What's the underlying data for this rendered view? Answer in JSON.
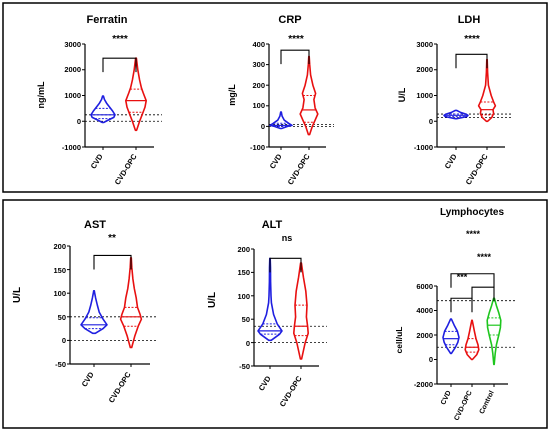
{
  "chart_data": [
    {
      "type": "violin",
      "title": "Ferratin",
      "ylabel": "ng/mL",
      "ylim": [
        -1000,
        3000
      ],
      "yticks": [
        -1000,
        0,
        1000,
        2000,
        3000
      ],
      "ytick_labels": [
        "-1000",
        "0",
        "1000",
        "2000",
        "3000"
      ],
      "categories": [
        "CVD",
        "CVD-OPC"
      ],
      "series": [
        {
          "category": "CVD",
          "color": "#1f1fe0",
          "min": -50,
          "q1": 100,
          "median": 250,
          "q3": 500,
          "max": 980,
          "profile": [
            [
              -50,
              0.05
            ],
            [
              50,
              0.45
            ],
            [
              150,
              0.9
            ],
            [
              250,
              1.0
            ],
            [
              400,
              0.8
            ],
            [
              550,
              0.55
            ],
            [
              700,
              0.3
            ],
            [
              850,
              0.12
            ],
            [
              980,
              0.03
            ]
          ]
        },
        {
          "category": "CVD-OPC",
          "color": "#e81010",
          "min": -350,
          "q1": 350,
          "median": 800,
          "q3": 1250,
          "max": 2450,
          "profile": [
            [
              -350,
              0.05
            ],
            [
              0,
              0.3
            ],
            [
              300,
              0.55
            ],
            [
              550,
              0.75
            ],
            [
              800,
              0.85
            ],
            [
              1100,
              0.6
            ],
            [
              1300,
              0.45
            ],
            [
              1600,
              0.3
            ],
            [
              2000,
              0.15
            ],
            [
              2450,
              0.03
            ]
          ]
        }
      ],
      "reference_lines": [
        0,
        250
      ],
      "comparisons": [
        {
          "from": 0,
          "to": 1,
          "label": "****",
          "value": 2450
        }
      ]
    },
    {
      "type": "violin",
      "title": "CRP",
      "ylabel": "mg/L",
      "ylim": [
        -100,
        400
      ],
      "yticks": [
        -100,
        0,
        100,
        200,
        300,
        400
      ],
      "ytick_labels": [
        "-100",
        "0",
        "100",
        "200",
        "300",
        "400"
      ],
      "categories": [
        "CVD",
        "CVD-OPC"
      ],
      "series": [
        {
          "category": "CVD",
          "color": "#1f1fe0",
          "min": -10,
          "q1": 0,
          "median": 5,
          "q3": 15,
          "max": 70,
          "profile": [
            [
              -10,
              0.05
            ],
            [
              0,
              0.6
            ],
            [
              5,
              1.0
            ],
            [
              15,
              0.7
            ],
            [
              30,
              0.3
            ],
            [
              50,
              0.1
            ],
            [
              70,
              0.03
            ]
          ]
        },
        {
          "category": "CVD-OPC",
          "color": "#e81010",
          "min": -40,
          "q1": 20,
          "median": 80,
          "q3": 150,
          "max": 340,
          "profile": [
            [
              -40,
              0.05
            ],
            [
              0,
              0.3
            ],
            [
              30,
              0.55
            ],
            [
              60,
              0.8
            ],
            [
              90,
              0.55
            ],
            [
              130,
              0.45
            ],
            [
              160,
              0.6
            ],
            [
              200,
              0.35
            ],
            [
              250,
              0.15
            ],
            [
              300,
              0.06
            ],
            [
              340,
              0.02
            ]
          ]
        }
      ],
      "reference_lines": [
        0,
        10
      ],
      "comparisons": [
        {
          "from": 0,
          "to": 1,
          "label": "****",
          "value": 370
        }
      ]
    },
    {
      "type": "violin",
      "title": "LDH",
      "ylabel": "U/L",
      "ylim": [
        -1000,
        3000
      ],
      "yticks": [
        -1000,
        0,
        1000,
        2000,
        3000
      ],
      "ytick_labels": [
        "-1000",
        "0",
        "1000",
        "2000",
        "3000"
      ],
      "categories": [
        "CVD",
        "CVD-OPC"
      ],
      "series": [
        {
          "category": "CVD",
          "color": "#1f1fe0",
          "min": 100,
          "q1": 180,
          "median": 230,
          "q3": 280,
          "max": 420,
          "profile": [
            [
              100,
              0.05
            ],
            [
              180,
              0.9
            ],
            [
              230,
              1.0
            ],
            [
              280,
              0.8
            ],
            [
              350,
              0.35
            ],
            [
              420,
              0.05
            ]
          ]
        },
        {
          "category": "CVD-OPC",
          "color": "#e81010",
          "min": 0,
          "q1": 250,
          "median": 450,
          "q3": 750,
          "max": 2400,
          "profile": [
            [
              0,
              0.05
            ],
            [
              150,
              0.4
            ],
            [
              300,
              0.55
            ],
            [
              450,
              0.5
            ],
            [
              600,
              0.7
            ],
            [
              750,
              0.55
            ],
            [
              1000,
              0.35
            ],
            [
              1400,
              0.12
            ],
            [
              1900,
              0.05
            ],
            [
              2400,
              0.02
            ]
          ]
        }
      ],
      "reference_lines": [
        140,
        280
      ],
      "comparisons": [
        {
          "from": 0,
          "to": 1,
          "label": "****",
          "value": 2600
        }
      ]
    },
    {
      "type": "violin",
      "title": "AST",
      "ylabel": "U/L",
      "ylim": [
        -50,
        200
      ],
      "yticks": [
        -50,
        0,
        50,
        100,
        150,
        200
      ],
      "ytick_labels": [
        "-50",
        "0",
        "50",
        "100",
        "150",
        "200"
      ],
      "categories": [
        "CVD",
        "CVD-OPC"
      ],
      "series": [
        {
          "category": "CVD",
          "color": "#1f1fe0",
          "min": 15,
          "q1": 25,
          "median": 33,
          "q3": 48,
          "max": 105,
          "profile": [
            [
              15,
              0.1
            ],
            [
              25,
              0.7
            ],
            [
              33,
              1.0
            ],
            [
              45,
              0.7
            ],
            [
              60,
              0.4
            ],
            [
              75,
              0.25
            ],
            [
              90,
              0.12
            ],
            [
              100,
              0.05
            ],
            [
              105,
              0.02
            ]
          ]
        },
        {
          "category": "CVD-OPC",
          "color": "#e81010",
          "min": -15,
          "q1": 30,
          "median": 50,
          "q3": 70,
          "max": 175,
          "profile": [
            [
              -15,
              0.05
            ],
            [
              10,
              0.3
            ],
            [
              30,
              0.55
            ],
            [
              45,
              0.8
            ],
            [
              55,
              0.7
            ],
            [
              70,
              0.5
            ],
            [
              90,
              0.4
            ],
            [
              110,
              0.25
            ],
            [
              130,
              0.15
            ],
            [
              155,
              0.06
            ],
            [
              175,
              0.02
            ]
          ]
        }
      ],
      "reference_lines": [
        0,
        50
      ],
      "comparisons": [
        {
          "from": 0,
          "to": 1,
          "label": "**",
          "value": 180
        }
      ]
    },
    {
      "type": "violin",
      "title": "ALT",
      "ylabel": "U/L",
      "ylim": [
        -50,
        200
      ],
      "yticks": [
        -50,
        0,
        50,
        100,
        150,
        200
      ],
      "ytick_labels": [
        "-50",
        "0",
        "50",
        "100",
        "150",
        "200"
      ],
      "categories": [
        "CVD",
        "CVD-OPC"
      ],
      "series": [
        {
          "category": "CVD",
          "color": "#1f1fe0",
          "min": 5,
          "q1": 18,
          "median": 25,
          "q3": 40,
          "max": 180,
          "profile": [
            [
              5,
              0.1
            ],
            [
              18,
              0.8
            ],
            [
              25,
              1.0
            ],
            [
              40,
              0.6
            ],
            [
              60,
              0.3
            ],
            [
              85,
              0.12
            ],
            [
              100,
              0.08
            ],
            [
              130,
              0.05
            ],
            [
              160,
              0.04
            ],
            [
              180,
              0.02
            ]
          ]
        },
        {
          "category": "CVD-OPC",
          "color": "#e81010",
          "min": -35,
          "q1": 15,
          "median": 35,
          "q3": 80,
          "max": 170,
          "profile": [
            [
              -35,
              0.05
            ],
            [
              0,
              0.35
            ],
            [
              20,
              0.6
            ],
            [
              35,
              0.55
            ],
            [
              55,
              0.45
            ],
            [
              80,
              0.5
            ],
            [
              110,
              0.4
            ],
            [
              140,
              0.2
            ],
            [
              170,
              0.03
            ]
          ]
        }
      ],
      "reference_lines": [
        0,
        35
      ],
      "comparisons": [
        {
          "from": 0,
          "to": 1,
          "label": "ns",
          "value": 180
        }
      ]
    },
    {
      "type": "violin",
      "title": "Lymphocytes",
      "ylabel": "cell/uL",
      "ylim": [
        -2000,
        6000
      ],
      "yticks": [
        -2000,
        0,
        2000,
        4000,
        6000
      ],
      "ytick_labels": [
        "-2000",
        "0",
        "2000",
        "4000",
        "6000"
      ],
      "categories": [
        "CVD",
        "CVD-OPC",
        "Control"
      ],
      "series": [
        {
          "category": "CVD",
          "color": "#1f1fe0",
          "min": 500,
          "q1": 1200,
          "median": 1700,
          "q3": 2300,
          "max": 3300,
          "profile": [
            [
              500,
              0.05
            ],
            [
              1000,
              0.55
            ],
            [
              1400,
              0.85
            ],
            [
              1800,
              1.0
            ],
            [
              2300,
              0.8
            ],
            [
              2800,
              0.4
            ],
            [
              3300,
              0.05
            ]
          ]
        },
        {
          "category": "CVD-OPC",
          "color": "#e81010",
          "min": 0,
          "q1": 600,
          "median": 1000,
          "q3": 1700,
          "max": 3200,
          "profile": [
            [
              0,
              0.05
            ],
            [
              400,
              0.6
            ],
            [
              800,
              0.85
            ],
            [
              1200,
              0.75
            ],
            [
              1700,
              0.5
            ],
            [
              2300,
              0.3
            ],
            [
              2800,
              0.15
            ],
            [
              3200,
              0.03
            ]
          ]
        },
        {
          "category": "Control",
          "color": "#1ec61e",
          "min": -400,
          "q1": 2000,
          "median": 2800,
          "q3": 3400,
          "max": 5000,
          "profile": [
            [
              -400,
              0.03
            ],
            [
              500,
              0.15
            ],
            [
              1200,
              0.3
            ],
            [
              2000,
              0.6
            ],
            [
              2600,
              0.8
            ],
            [
              3200,
              0.85
            ],
            [
              3800,
              0.6
            ],
            [
              4400,
              0.3
            ],
            [
              5000,
              0.05
            ]
          ]
        }
      ],
      "reference_lines": [
        1000,
        4800
      ],
      "comparisons": [
        {
          "from": 0,
          "to": 1,
          "label": "***",
          "value": 5000
        },
        {
          "from": 1,
          "to": 2,
          "label": "****",
          "value": 5900
        },
        {
          "from": 0,
          "to": 2,
          "label": "****",
          "value": 7000
        }
      ]
    }
  ]
}
